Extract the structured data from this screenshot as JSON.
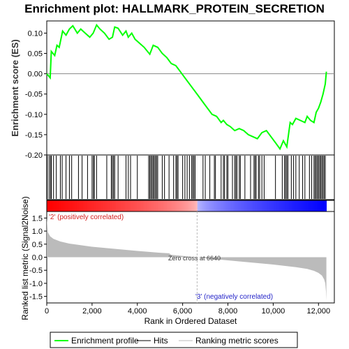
{
  "chart_data": {
    "type": "line",
    "title": "Enrichment plot: HALLMARK_PROTEIN_SECRETION",
    "es_axis": {
      "ylabel": "Enrichment score (ES)",
      "ylim": [
        -0.2,
        0.13
      ],
      "ticks": [
        0.1,
        0.05,
        0.0,
        -0.05,
        -0.1,
        -0.15,
        -0.2
      ],
      "tick_labels": [
        "0.10",
        "0.05",
        "0.00",
        "-0.05",
        "-0.10",
        "-0.15",
        "-0.20"
      ]
    },
    "metric_axis": {
      "ylabel": "Ranked list metric (Signal2Noise)",
      "ylim": [
        -1.75,
        1.75
      ],
      "ticks": [
        1.5,
        1.0,
        0.5,
        0.0,
        -0.5,
        -1.0,
        -1.5
      ],
      "tick_labels": [
        "1.5",
        "1.0",
        "0.5",
        "0.0",
        "-0.5",
        "-1.0",
        "-1.5"
      ]
    },
    "x_axis": {
      "xlabel": "Rank in Ordered Dataset",
      "xlim": [
        0,
        12700
      ],
      "ticks": [
        0,
        2000,
        4000,
        6000,
        8000,
        10000,
        12000
      ],
      "tick_labels": [
        "0",
        "2,000",
        "4,000",
        "6,000",
        "8,000",
        "10,000",
        "12,000"
      ]
    },
    "dataset_size": 12350,
    "zero_cross": 6640,
    "zero_cross_label": "Zero cross at 6640",
    "positive_label": "'2' (positively correlated)",
    "negative_label": "'3' (negatively correlated)",
    "hits": [
      20,
      100,
      160,
      200,
      300,
      420,
      600,
      680,
      850,
      1000,
      1100,
      1400,
      1560,
      1800,
      2000,
      2060,
      2100,
      2200,
      2650,
      2850,
      2900,
      2950,
      3000,
      3150,
      3500,
      3600,
      3700,
      4000,
      4500,
      4550,
      4600,
      4650,
      4700,
      4750,
      4800,
      4850,
      4900,
      5100,
      5200,
      5400,
      5600,
      5700,
      5750,
      5800,
      6000,
      6100,
      6200,
      6300,
      6400,
      6450,
      6500,
      6550,
      6900,
      7000,
      7200,
      7400,
      7450,
      7700,
      7800,
      7850,
      7950,
      8000,
      8200,
      8300,
      8350,
      8400,
      8500,
      8550,
      8750,
      9000,
      9150,
      9200,
      9250,
      9350,
      9400,
      9500,
      9600,
      10100,
      10400,
      10500,
      10550,
      10600,
      10650,
      10800,
      10900,
      11000,
      11150,
      11300,
      11400,
      11600,
      11700,
      11800,
      11850,
      11900,
      11950,
      12000,
      12050,
      12100,
      12150,
      12200,
      12250,
      12300
    ],
    "es_profile": {
      "x": [
        0,
        150,
        200,
        350,
        450,
        550,
        700,
        850,
        1000,
        1150,
        1350,
        1500,
        1700,
        1900,
        2050,
        2200,
        2350,
        2550,
        2750,
        2900,
        3000,
        3150,
        3350,
        3500,
        3600,
        3750,
        3900,
        4100,
        4300,
        4550,
        4700,
        4900,
        5100,
        5300,
        5500,
        5700,
        5900,
        6100,
        6300,
        6500,
        6700,
        6900,
        7100,
        7300,
        7500,
        7700,
        7800,
        7950,
        8100,
        8300,
        8500,
        8700,
        8900,
        9100,
        9300,
        9500,
        9700,
        9900,
        10100,
        10300,
        10450,
        10600,
        10750,
        10850,
        11000,
        11200,
        11400,
        11500,
        11650,
        11800,
        11900,
        12000,
        12100,
        12200,
        12300,
        12350
      ],
      "y": [
        0.0,
        -0.01,
        0.055,
        0.045,
        0.07,
        0.065,
        0.105,
        0.095,
        0.11,
        0.118,
        0.1,
        0.11,
        0.1,
        0.09,
        0.1,
        0.12,
        0.11,
        0.1,
        0.085,
        0.09,
        0.115,
        0.112,
        0.095,
        0.105,
        0.09,
        0.1,
        0.085,
        0.075,
        0.065,
        0.048,
        0.07,
        0.065,
        0.05,
        0.04,
        0.025,
        0.02,
        0.005,
        -0.01,
        -0.025,
        -0.04,
        -0.055,
        -0.07,
        -0.085,
        -0.1,
        -0.105,
        -0.12,
        -0.115,
        -0.125,
        -0.13,
        -0.14,
        -0.135,
        -0.14,
        -0.15,
        -0.155,
        -0.16,
        -0.145,
        -0.14,
        -0.155,
        -0.17,
        -0.185,
        -0.165,
        -0.18,
        -0.12,
        -0.125,
        -0.11,
        -0.115,
        -0.12,
        -0.105,
        -0.115,
        -0.12,
        -0.095,
        -0.085,
        -0.07,
        -0.05,
        -0.025,
        0.005
      ]
    },
    "metric_profile": {
      "x": [
        0,
        50,
        150,
        300,
        600,
        1000,
        1500,
        2000,
        3000,
        4000,
        5000,
        5400,
        5500,
        6000,
        6640,
        7000,
        8000,
        9000,
        10000,
        10500,
        11000,
        11500,
        11800,
        12000,
        12150,
        12250,
        12300,
        12330,
        12350
      ],
      "y": [
        1.5,
        0.95,
        0.8,
        0.7,
        0.6,
        0.52,
        0.46,
        0.4,
        0.32,
        0.24,
        0.17,
        0.15,
        0.09,
        0.05,
        0.0,
        -0.04,
        -0.12,
        -0.2,
        -0.28,
        -0.33,
        -0.38,
        -0.45,
        -0.52,
        -0.6,
        -0.7,
        -0.85,
        -1.0,
        -1.3,
        -1.65
      ]
    },
    "heatmap_colors": {
      "positive": "#ff0000",
      "negative": "#0000ff",
      "neutral": "#ffffff"
    },
    "colors": {
      "es_line": "#00ff00",
      "hit": "#000000",
      "metric_fill": "#bbbbbb",
      "zero_line": "#888888",
      "zero_cross_line": "#bbbbbb"
    },
    "legend": [
      {
        "label": "Enrichment profile",
        "color": "#00ff00",
        "style": "line"
      },
      {
        "label": "Hits",
        "color": "#000000",
        "style": "line"
      },
      {
        "label": "Ranking metric scores",
        "color": "#bbbbbb",
        "style": "line"
      }
    ]
  }
}
